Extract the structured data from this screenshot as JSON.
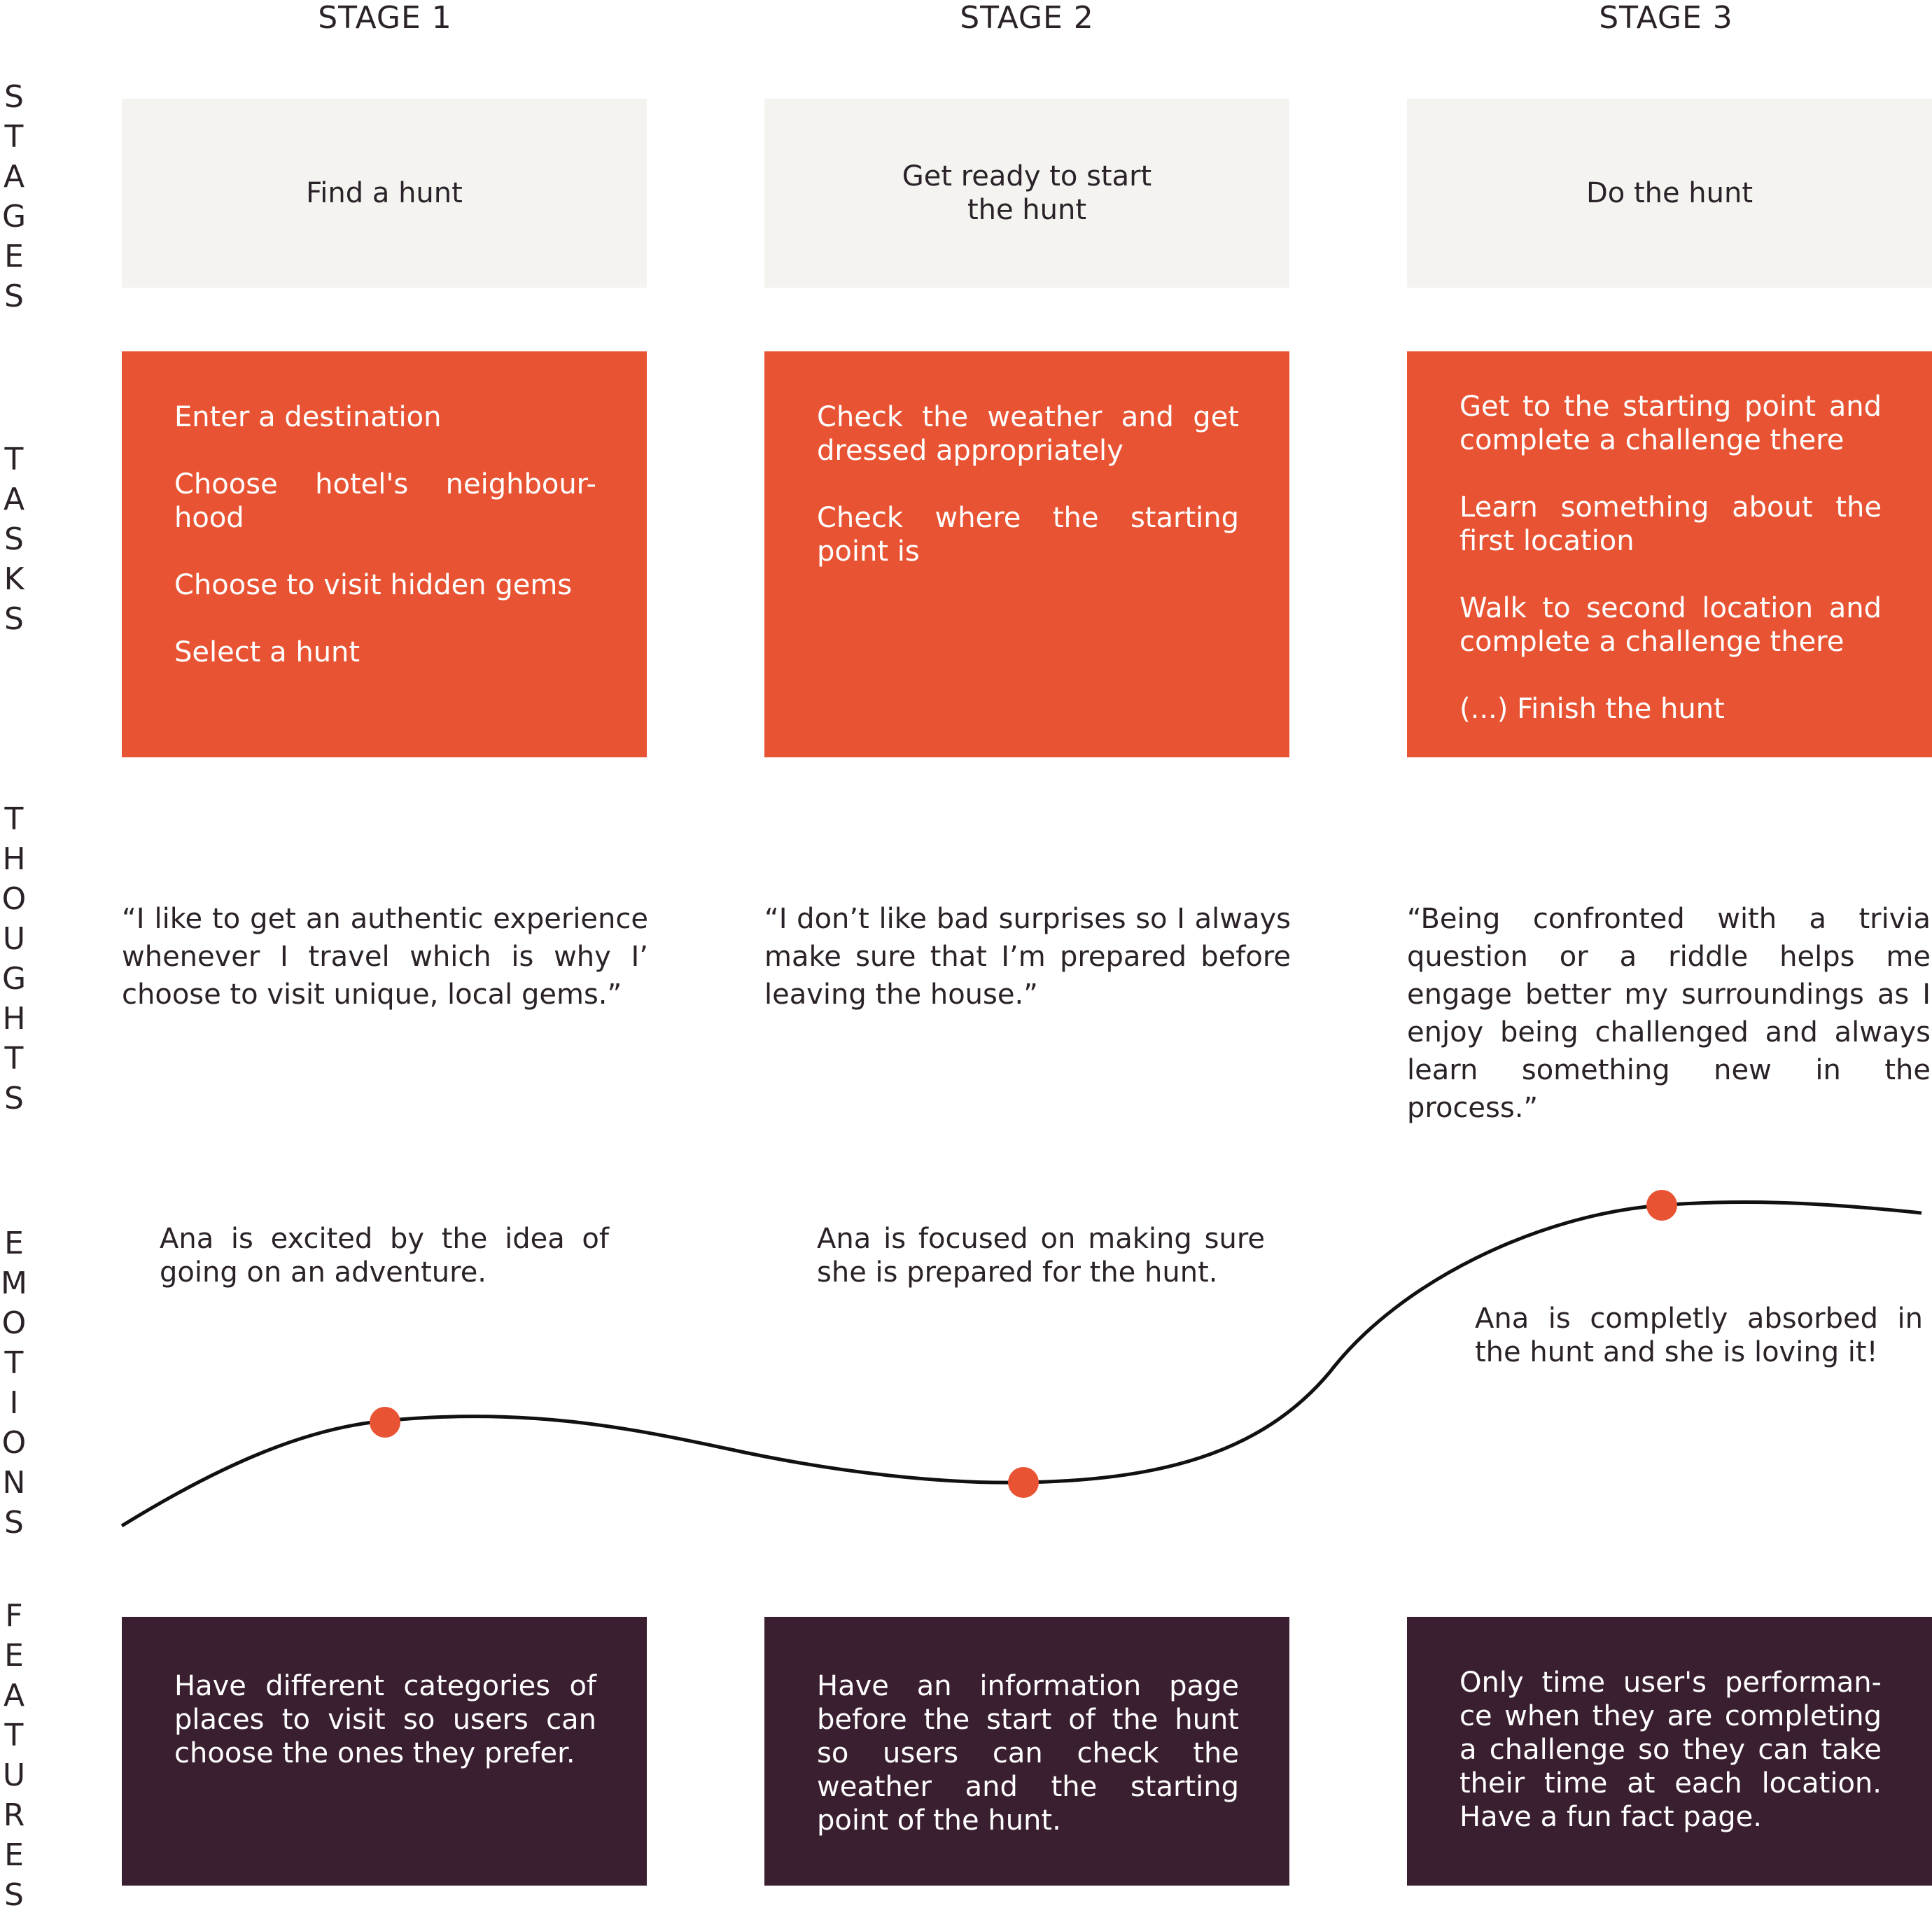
{
  "stages": [
    {
      "header": "STAGE 1",
      "stage": "Find a hunt",
      "tasks": [
        "Enter a destination",
        "Choose hotel's neighbour-hood",
        "Choose to visit hidden gems",
        "Select a hunt"
      ],
      "thought": "“I like to get an authentic experience whenever I travel which is why I’ choose to visit unique, local gems.”",
      "emotion": "Ana is excited by the idea of going on an adventure.",
      "feature": "Have different categories of places to visit so users can choose the ones they prefer."
    },
    {
      "header": "STAGE 2",
      "stage": "Get ready to start the hunt",
      "tasks": [
        "Check the weather and get dressed appropriately",
        "Check where the starting point is"
      ],
      "thought": "“I don’t like bad surprises so I always make sure that I’m prepared before leaving the house.”",
      "emotion": "Ana is focused on making sure she is prepared for the hunt.",
      "feature": "Have an information page before the start of the hunt so users can check the weather and the starting point of the hunt."
    },
    {
      "header": "STAGE 3",
      "stage": "Do the hunt",
      "tasks": [
        "Get to the starting point and complete a challenge there",
        "Learn something about the first location",
        "Walk to second location and complete a challenge there",
        "(...) Finish the hunt"
      ],
      "thought": "“Being confronted with a trivia question or a riddle helps me engage better my surroundings as I enjoy being challenged and always learn something new in the process.”",
      "emotion": "Ana is completly absorbed in the hunt and she is loving it!",
      "feature": "Only time user's performan-ce when they are completing a challenge so they can take their time at each location. Have a fun fact page."
    }
  ],
  "row_labels": {
    "stages": "S\nT\nA\nG\nE\nS",
    "tasks": "T\nA\nS\nK\nS",
    "thoughts": "T\nH\nO\nU\nG\nH\nT\nS",
    "emotions": "E\nM\nO\nT\nI\nO\nN\nS",
    "features": "F\nE\nA\nT\nU\nR\nE\nS"
  },
  "colors": {
    "stage_bg": "#f4f3f0",
    "task_bg": "#e85433",
    "feature_bg": "#3a1f30",
    "marker": "#e85433",
    "curve": "#111111"
  }
}
